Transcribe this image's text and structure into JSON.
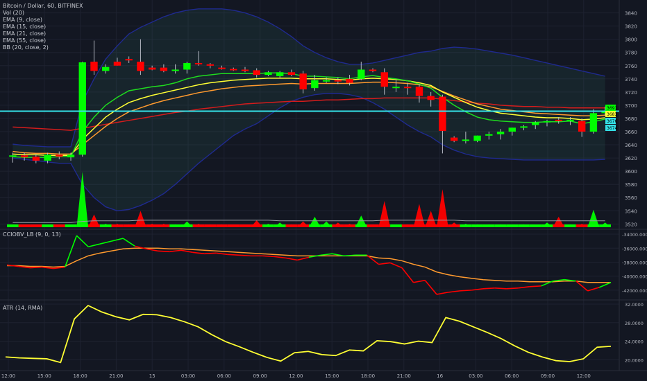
{
  "legend": {
    "symbol": "Bitcoin / Dollar, 60, BITFINEX",
    "vol": "Vol (20)",
    "ema9": "EMA (9, close)",
    "ema15": "EMA (15, close)",
    "ema21": "EMA (21, close)",
    "ema55": "EMA (55, close)",
    "bb": "BB (20, close, 2)"
  },
  "pane2_title": "CCIOBV_LB (9, 0, 13)",
  "pane3_title": "ATR (14, RMA)",
  "colors": {
    "bg": "#131722",
    "up": "#00ff00",
    "down": "#ff0000",
    "ema9": "#1fdc1f",
    "ema15": "#ffff33",
    "ema21": "#ff9a2e",
    "ema55": "#d41c1c",
    "bb": "#1f2a8f",
    "bb_fill": "rgba(60,140,120,0.12)",
    "hline": "#34e2e8",
    "atr": "#ffff33",
    "grid": "#1e2230",
    "axis_text": "#b2b5be"
  },
  "chart_data": [
    {
      "type": "candlestick",
      "title": "Bitcoin / Dollar, 60, BITFINEX",
      "y_ticks": [
        "3840",
        "3820",
        "3800",
        "3780",
        "3760",
        "3740",
        "3720",
        "3700",
        "3680",
        "3660",
        "3640",
        "3620",
        "3600",
        "3580",
        "3560",
        "3540",
        "3520"
      ],
      "ylim": [
        3513,
        3849
      ],
      "x_ticks": [
        "12:00",
        "15:00",
        "18:00",
        "21:00",
        "15",
        "03:00",
        "06:00",
        "09:00",
        "12:00",
        "15:00",
        "18:00",
        "21:00",
        "16",
        "03:00",
        "06:00",
        "09:00",
        "12:00"
      ],
      "price_labels": [
        "3691",
        "3683",
        "3676",
        "3674"
      ],
      "horizontal_line": 3691,
      "candles": [
        {
          "o": 3622,
          "h": 3628,
          "l": 3613,
          "c": 3624
        },
        {
          "o": 3624,
          "h": 3628,
          "l": 3616,
          "c": 3621
        },
        {
          "o": 3622,
          "h": 3626,
          "l": 3612,
          "c": 3616
        },
        {
          "o": 3616,
          "h": 3628,
          "l": 3612,
          "c": 3625
        },
        {
          "o": 3625,
          "h": 3630,
          "l": 3618,
          "c": 3622
        },
        {
          "o": 3621,
          "h": 3628,
          "l": 3616,
          "c": 3625
        },
        {
          "o": 3625,
          "h": 3766,
          "l": 3622,
          "c": 3765
        },
        {
          "o": 3766,
          "h": 3798,
          "l": 3746,
          "c": 3752
        },
        {
          "o": 3752,
          "h": 3762,
          "l": 3748,
          "c": 3758
        },
        {
          "o": 3766,
          "h": 3772,
          "l": 3760,
          "c": 3760
        },
        {
          "o": 3770,
          "h": 3774,
          "l": 3764,
          "c": 3768
        },
        {
          "o": 3766,
          "h": 3800,
          "l": 3746,
          "c": 3752
        },
        {
          "o": 3757,
          "h": 3760,
          "l": 3753,
          "c": 3754
        },
        {
          "o": 3757,
          "h": 3762,
          "l": 3750,
          "c": 3752
        },
        {
          "o": 3752,
          "h": 3762,
          "l": 3748,
          "c": 3754
        },
        {
          "o": 3754,
          "h": 3766,
          "l": 3748,
          "c": 3764
        },
        {
          "o": 3764,
          "h": 3782,
          "l": 3760,
          "c": 3762
        },
        {
          "o": 3762,
          "h": 3764,
          "l": 3756,
          "c": 3760
        },
        {
          "o": 3757,
          "h": 3760,
          "l": 3754,
          "c": 3756
        },
        {
          "o": 3755,
          "h": 3757,
          "l": 3752,
          "c": 3754
        },
        {
          "o": 3754,
          "h": 3758,
          "l": 3750,
          "c": 3752
        },
        {
          "o": 3753,
          "h": 3756,
          "l": 3742,
          "c": 3746
        },
        {
          "o": 3746,
          "h": 3752,
          "l": 3744,
          "c": 3750
        },
        {
          "o": 3744,
          "h": 3752,
          "l": 3742,
          "c": 3750
        },
        {
          "o": 3750,
          "h": 3754,
          "l": 3744,
          "c": 3746
        },
        {
          "o": 3748,
          "h": 3752,
          "l": 3718,
          "c": 3724
        },
        {
          "o": 3726,
          "h": 3746,
          "l": 3722,
          "c": 3738
        },
        {
          "o": 3738,
          "h": 3742,
          "l": 3734,
          "c": 3738
        },
        {
          "o": 3738,
          "h": 3742,
          "l": 3732,
          "c": 3736
        },
        {
          "o": 3740,
          "h": 3746,
          "l": 3730,
          "c": 3734
        },
        {
          "o": 3740,
          "h": 3766,
          "l": 3738,
          "c": 3754
        },
        {
          "o": 3754,
          "h": 3756,
          "l": 3750,
          "c": 3752
        },
        {
          "o": 3750,
          "h": 3756,
          "l": 3716,
          "c": 3728
        },
        {
          "o": 3727,
          "h": 3738,
          "l": 3720,
          "c": 3728
        },
        {
          "o": 3728,
          "h": 3734,
          "l": 3716,
          "c": 3726
        },
        {
          "o": 3728,
          "h": 3732,
          "l": 3704,
          "c": 3714
        },
        {
          "o": 3714,
          "h": 3720,
          "l": 3698,
          "c": 3708
        },
        {
          "o": 3713,
          "h": 3716,
          "l": 3627,
          "c": 3661
        },
        {
          "o": 3651,
          "h": 3653,
          "l": 3644,
          "c": 3646
        },
        {
          "o": 3646,
          "h": 3660,
          "l": 3642,
          "c": 3648
        },
        {
          "o": 3646,
          "h": 3654,
          "l": 3644,
          "c": 3654
        },
        {
          "o": 3654,
          "h": 3660,
          "l": 3648,
          "c": 3656
        },
        {
          "o": 3656,
          "h": 3664,
          "l": 3648,
          "c": 3660
        },
        {
          "o": 3660,
          "h": 3666,
          "l": 3654,
          "c": 3666
        },
        {
          "o": 3666,
          "h": 3670,
          "l": 3662,
          "c": 3668
        },
        {
          "o": 3670,
          "h": 3676,
          "l": 3664,
          "c": 3674
        },
        {
          "o": 3674,
          "h": 3678,
          "l": 3668,
          "c": 3676
        },
        {
          "o": 3678,
          "h": 3682,
          "l": 3672,
          "c": 3676
        },
        {
          "o": 3676,
          "h": 3682,
          "l": 3670,
          "c": 3678
        },
        {
          "o": 3676,
          "h": 3680,
          "l": 3652,
          "c": 3660
        },
        {
          "o": 3660,
          "h": 3694,
          "l": 3657,
          "c": 3688
        },
        {
          "o": 3688,
          "h": 3698,
          "l": 3684,
          "c": 3691
        }
      ],
      "series": [
        {
          "name": "EMA (9, close)",
          "values": [
            3622,
            3621,
            3621,
            3621,
            3622,
            3622,
            3660,
            3682,
            3700,
            3712,
            3722,
            3725,
            3728,
            3730,
            3734,
            3740,
            3744,
            3746,
            3748,
            3748,
            3748,
            3748,
            3749,
            3749,
            3748,
            3744,
            3744,
            3743,
            3742,
            3740,
            3743,
            3745,
            3742,
            3740,
            3737,
            3732,
            3726,
            3712,
            3700,
            3690,
            3682,
            3678,
            3676,
            3675,
            3674,
            3674,
            3675,
            3675,
            3676,
            3672,
            3675,
            3679
          ]
        },
        {
          "name": "EMA (15, close)",
          "values": [
            3626,
            3625,
            3625,
            3624,
            3624,
            3624,
            3648,
            3665,
            3682,
            3694,
            3704,
            3710,
            3715,
            3719,
            3723,
            3727,
            3731,
            3734,
            3736,
            3738,
            3739,
            3740,
            3741,
            3741,
            3741,
            3740,
            3740,
            3740,
            3739,
            3738,
            3740,
            3741,
            3740,
            3739,
            3737,
            3734,
            3730,
            3720,
            3712,
            3704,
            3697,
            3692,
            3688,
            3686,
            3684,
            3682,
            3681,
            3681,
            3680,
            3678,
            3679,
            3681
          ]
        },
        {
          "name": "EMA (21, close)",
          "values": [
            3630,
            3628,
            3627,
            3627,
            3626,
            3626,
            3640,
            3654,
            3668,
            3680,
            3690,
            3696,
            3702,
            3707,
            3711,
            3715,
            3719,
            3722,
            3725,
            3727,
            3729,
            3730,
            3731,
            3732,
            3733,
            3732,
            3733,
            3733,
            3733,
            3733,
            3734,
            3735,
            3735,
            3734,
            3733,
            3731,
            3728,
            3721,
            3714,
            3708,
            3702,
            3698,
            3694,
            3692,
            3690,
            3688,
            3687,
            3686,
            3685,
            3684,
            3684,
            3685
          ]
        },
        {
          "name": "EMA (55, close)",
          "values": [
            3667,
            3666,
            3665,
            3664,
            3663,
            3662,
            3665,
            3668,
            3671,
            3674,
            3677,
            3680,
            3683,
            3686,
            3689,
            3691,
            3694,
            3696,
            3698,
            3700,
            3702,
            3703,
            3704,
            3705,
            3706,
            3706,
            3707,
            3708,
            3708,
            3709,
            3710,
            3710,
            3711,
            3711,
            3711,
            3711,
            3711,
            3709,
            3707,
            3705,
            3703,
            3702,
            3700,
            3699,
            3698,
            3698,
            3697,
            3697,
            3696,
            3696,
            3696,
            3696
          ]
        },
        {
          "name": "BB upper",
          "values": [
            3641,
            3639,
            3638,
            3637,
            3637,
            3637,
            3705,
            3740,
            3770,
            3790,
            3808,
            3818,
            3826,
            3834,
            3840,
            3844,
            3846,
            3846,
            3846,
            3844,
            3840,
            3834,
            3826,
            3816,
            3804,
            3790,
            3780,
            3772,
            3766,
            3762,
            3762,
            3764,
            3768,
            3772,
            3776,
            3780,
            3782,
            3786,
            3788,
            3787,
            3785,
            3782,
            3779,
            3776,
            3772,
            3768,
            3764,
            3760,
            3756,
            3752,
            3748,
            3744
          ]
        },
        {
          "name": "BB lower",
          "values": [
            3620,
            3618,
            3616,
            3614,
            3612,
            3612,
            3580,
            3560,
            3546,
            3540,
            3542,
            3548,
            3556,
            3566,
            3580,
            3596,
            3612,
            3626,
            3640,
            3654,
            3664,
            3672,
            3684,
            3696,
            3706,
            3712,
            3716,
            3718,
            3718,
            3716,
            3712,
            3704,
            3694,
            3682,
            3670,
            3660,
            3652,
            3640,
            3632,
            3626,
            3622,
            3620,
            3619,
            3618,
            3617,
            3617,
            3617,
            3617,
            3617,
            3617,
            3617,
            3618
          ]
        }
      ]
    },
    {
      "type": "bar",
      "title": "Vol (20)",
      "volumes": [
        4,
        3,
        3,
        3,
        3,
        3,
        95,
        22,
        6,
        6,
        5,
        28,
        6,
        6,
        5,
        10,
        6,
        5,
        5,
        4,
        4,
        12,
        6,
        8,
        5,
        10,
        18,
        10,
        8,
        6,
        20,
        5,
        45,
        5,
        5,
        40,
        28,
        65,
        8,
        6,
        5,
        5,
        5,
        4,
        5,
        4,
        8,
        18,
        5,
        6,
        30,
        8
      ],
      "ma": [
        8,
        8,
        8,
        8,
        8,
        8,
        10,
        11,
        11,
        11,
        11,
        12,
        12,
        12,
        12,
        12,
        12,
        12,
        12,
        12,
        12,
        12,
        12,
        11,
        11,
        11,
        11,
        11,
        11,
        11,
        11,
        11,
        12,
        12,
        12,
        12,
        12,
        12,
        12,
        11,
        11,
        11,
        11,
        11,
        11,
        11,
        11,
        11,
        11,
        11,
        11,
        11
      ]
    },
    {
      "type": "line",
      "title": "CCIOBV_LB (9, 0, 13)",
      "y_ticks": [
        "-34000.0000",
        "-36000.0000",
        "-38000.0000",
        "-40000.0000",
        "-42000.0000"
      ],
      "ylim": [
        -43300,
        -33500
      ],
      "series": [
        {
          "name": "CCIOBV",
          "values": [
            -38400,
            -38600,
            -38800,
            -38700,
            -38900,
            -38700,
            -34200,
            -35800,
            -35400,
            -35000,
            -34600,
            -35700,
            -36100,
            -36400,
            -36500,
            -36300,
            -36600,
            -36800,
            -36700,
            -36900,
            -37000,
            -37100,
            -37100,
            -37200,
            -37400,
            -37700,
            -37300,
            -37000,
            -36800,
            -37100,
            -37000,
            -37000,
            -38300,
            -38100,
            -38800,
            -40900,
            -40600,
            -42600,
            -42300,
            -42100,
            -42000,
            -41800,
            -41700,
            -41800,
            -41700,
            -41500,
            -41400,
            -40700,
            -40500,
            -40700,
            -42100,
            -41600,
            -40900
          ]
        },
        {
          "name": "Signal",
          "values": [
            -38500,
            -38500,
            -38600,
            -38600,
            -38700,
            -38600,
            -37800,
            -37100,
            -36700,
            -36400,
            -36100,
            -36000,
            -36000,
            -36000,
            -36100,
            -36100,
            -36200,
            -36300,
            -36400,
            -36500,
            -36600,
            -36700,
            -36800,
            -36900,
            -37000,
            -37100,
            -37100,
            -37100,
            -37100,
            -37100,
            -37100,
            -37100,
            -37400,
            -37500,
            -37800,
            -38300,
            -38700,
            -39400,
            -39800,
            -40100,
            -40300,
            -40500,
            -40600,
            -40700,
            -40700,
            -40800,
            -40800,
            -40800,
            -40700,
            -40700,
            -40900,
            -40900,
            -40900
          ]
        }
      ]
    },
    {
      "type": "line",
      "title": "ATR (14, RMA)",
      "y_ticks": [
        "32.0000",
        "28.0000",
        "24.0000",
        "20.0000"
      ],
      "ylim": [
        18.4,
        32.6
      ],
      "series": [
        {
          "name": "ATR (14, RMA)",
          "values": [
            20.6,
            20.4,
            20.3,
            20.2,
            19.4,
            28.8,
            31.7,
            30.3,
            29.3,
            28.6,
            29.8,
            29.7,
            29.1,
            28.2,
            27.1,
            25.4,
            23.9,
            22.8,
            21.6,
            20.5,
            19.7,
            21.5,
            21.8,
            21.1,
            20.9,
            22.1,
            21.9,
            24.1,
            23.9,
            23.4,
            24.0,
            23.7,
            29.1,
            28.3,
            27.1,
            25.9,
            24.6,
            23.0,
            21.6,
            20.6,
            19.8,
            19.6,
            20.2,
            22.7,
            22.9
          ]
        }
      ]
    }
  ]
}
